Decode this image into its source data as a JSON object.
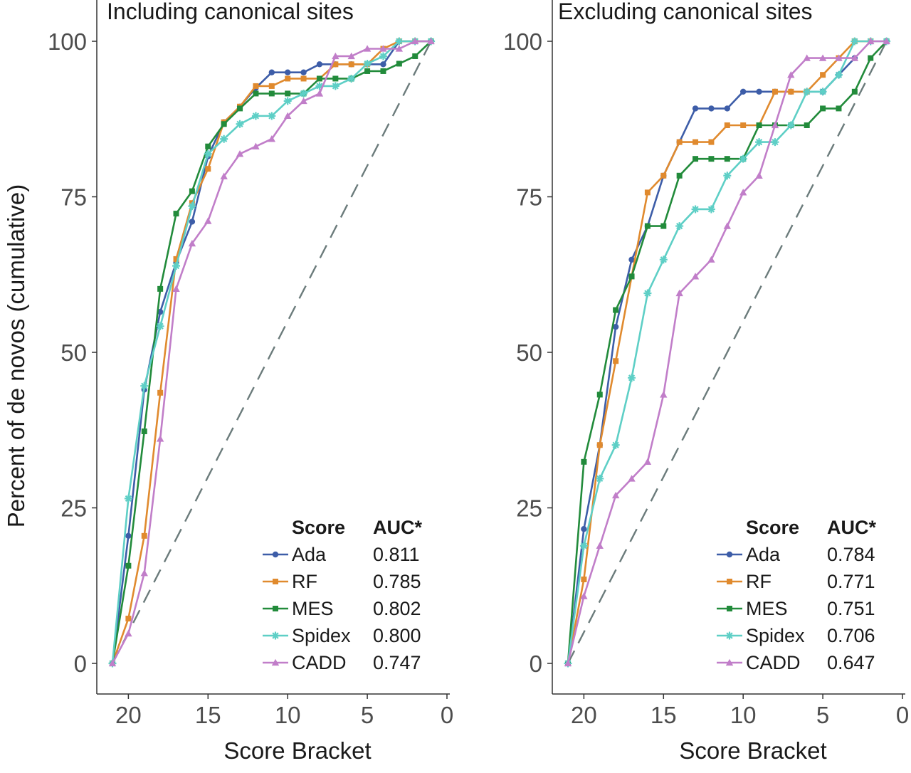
{
  "chart_data": {
    "type": "line",
    "ylabel": "Percent of de novos (cumulative)",
    "xlabel": "Score Bracket",
    "xlim": [
      21,
      0
    ],
    "ylim": [
      0,
      100
    ],
    "xticks": [
      20,
      15,
      10,
      5,
      0
    ],
    "yticks": [
      0,
      25,
      50,
      75,
      100
    ],
    "legend_header": {
      "score": "Score",
      "auc": "AUC*"
    },
    "diagonal": {
      "from": [
        21,
        0
      ],
      "to": [
        1,
        100
      ],
      "style": "dashed",
      "color": "#6b7b7b"
    },
    "colors": {
      "Ada": "#3d5da8",
      "RF": "#e08a2e",
      "MES": "#228b3b",
      "Spidex": "#5ecfc6",
      "CADD": "#c17ec9"
    },
    "panels": [
      {
        "title": "Including canonical sites",
        "series": [
          {
            "name": "Ada",
            "auc": "0.811",
            "marker": "circle",
            "x": [
              21,
              20,
              19,
              18,
              17,
              16,
              15,
              14,
              13,
              12,
              11,
              10,
              9,
              8,
              7,
              6,
              5,
              4,
              3,
              2,
              1
            ],
            "y": [
              0,
              20.5,
              44,
              56.5,
              64.5,
              71,
              81.5,
              87,
              89.5,
              92.5,
              95,
              95,
              95,
              96.3,
              96.3,
              96.3,
              96.3,
              96.3,
              100,
              100,
              100
            ]
          },
          {
            "name": "RF",
            "auc": "0.785",
            "marker": "square",
            "x": [
              21,
              20,
              19,
              18,
              17,
              16,
              15,
              14,
              13,
              12,
              11,
              10,
              9,
              8,
              7,
              6,
              5,
              4,
              3,
              2,
              1
            ],
            "y": [
              0,
              7.2,
              20.5,
              43.5,
              65,
              74,
              79.5,
              87,
              89.5,
              92.8,
              92.8,
              94,
              94,
              94,
              96.3,
              96.3,
              96.3,
              98.8,
              100,
              100,
              100
            ]
          },
          {
            "name": "MES",
            "auc": "0.802",
            "marker": "square",
            "x": [
              21,
              20,
              19,
              18,
              17,
              16,
              15,
              14,
              13,
              12,
              11,
              10,
              9,
              8,
              7,
              6,
              5,
              4,
              3,
              2,
              1
            ],
            "y": [
              0,
              15.7,
              37.3,
              60.2,
              72.3,
              75.9,
              83.1,
              86.7,
              89.2,
              91.6,
              91.6,
              91.6,
              91.6,
              94,
              94,
              94,
              95.2,
              95.2,
              96.4,
              97.6,
              100
            ]
          },
          {
            "name": "Spidex",
            "auc": "0.800",
            "marker": "asterisk",
            "x": [
              21,
              20,
              19,
              18,
              17,
              16,
              15,
              14,
              13,
              12,
              11,
              10,
              9,
              8,
              7,
              6,
              5,
              4,
              3,
              2,
              1
            ],
            "y": [
              0,
              26.5,
              44.6,
              54.2,
              63.9,
              73.5,
              81.9,
              84.3,
              86.7,
              88,
              88,
              90.4,
              91.6,
              92.8,
              92.8,
              94,
              96.4,
              97.6,
              100,
              100,
              100
            ]
          },
          {
            "name": "CADD",
            "auc": "0.747",
            "marker": "triangle",
            "x": [
              21,
              20,
              19,
              18,
              17,
              16,
              15,
              14,
              13,
              12,
              11,
              10,
              9,
              8,
              7,
              6,
              5,
              4,
              3,
              2,
              1
            ],
            "y": [
              0,
              4.8,
              14.5,
              36.1,
              60.2,
              67.5,
              71.1,
              78.3,
              81.9,
              83.1,
              84.3,
              88,
              90.4,
              91.6,
              97.6,
              97.6,
              98.8,
              98.8,
              98.8,
              100,
              100
            ]
          }
        ]
      },
      {
        "title": "Excluding canonical sites",
        "series": [
          {
            "name": "Ada",
            "auc": "0.784",
            "marker": "circle",
            "x": [
              21,
              20,
              19,
              18,
              17,
              16,
              15,
              14,
              13,
              12,
              11,
              10,
              9,
              8,
              7,
              6,
              5,
              4,
              3
            ],
            "y": [
              0,
              21.6,
              35.1,
              54.1,
              64.9,
              70.3,
              78.4,
              83.8,
              89.2,
              89.2,
              89.2,
              91.9,
              91.9,
              91.9,
              91.9,
              91.9,
              91.9,
              94.6,
              97.3
            ]
          },
          {
            "name": "RF",
            "auc": "0.771",
            "marker": "square",
            "x": [
              21,
              20,
              19,
              18,
              17,
              16,
              15,
              14,
              13,
              12,
              11,
              10,
              9,
              8,
              7,
              6,
              5,
              4,
              3,
              2
            ],
            "y": [
              0,
              13.5,
              35.1,
              48.6,
              62.2,
              75.7,
              78.4,
              83.8,
              83.8,
              83.8,
              86.5,
              86.5,
              86.5,
              91.9,
              91.9,
              91.9,
              94.6,
              97.3,
              100,
              100
            ]
          },
          {
            "name": "MES",
            "auc": "0.751",
            "marker": "square",
            "x": [
              21,
              20,
              19,
              18,
              17,
              16,
              15,
              14,
              13,
              12,
              11,
              10,
              9,
              8,
              7,
              6,
              5,
              4,
              3,
              2,
              1
            ],
            "y": [
              0,
              32.4,
              43.2,
              56.8,
              62.2,
              70.3,
              70.3,
              78.4,
              81.1,
              81.1,
              81.1,
              81.1,
              86.5,
              86.5,
              86.5,
              86.5,
              89.2,
              89.2,
              91.9,
              97.3,
              100
            ]
          },
          {
            "name": "Spidex",
            "auc": "0.706",
            "marker": "asterisk",
            "x": [
              21,
              20,
              19,
              18,
              17,
              16,
              15,
              14,
              13,
              12,
              11,
              10,
              9,
              8,
              7,
              6,
              5,
              4,
              3,
              2,
              1
            ],
            "y": [
              0,
              18.9,
              29.7,
              35.1,
              45.9,
              59.5,
              64.9,
              70.3,
              73,
              73,
              78.4,
              81.1,
              83.8,
              83.8,
              86.5,
              91.9,
              91.9,
              94.6,
              100,
              100,
              100
            ]
          },
          {
            "name": "CADD",
            "auc": "0.647",
            "marker": "triangle",
            "x": [
              21,
              20,
              19,
              18,
              17,
              16,
              15,
              14,
              13,
              12,
              11,
              10,
              9,
              8,
              7,
              6,
              5,
              4,
              3,
              2,
              1
            ],
            "y": [
              0,
              10.8,
              18.9,
              27,
              29.7,
              32.4,
              43.2,
              59.5,
              62.2,
              64.9,
              70.3,
              75.7,
              78.4,
              86.5,
              94.6,
              97.3,
              97.3,
              97.3,
              97.3,
              100,
              100
            ]
          }
        ]
      }
    ]
  }
}
